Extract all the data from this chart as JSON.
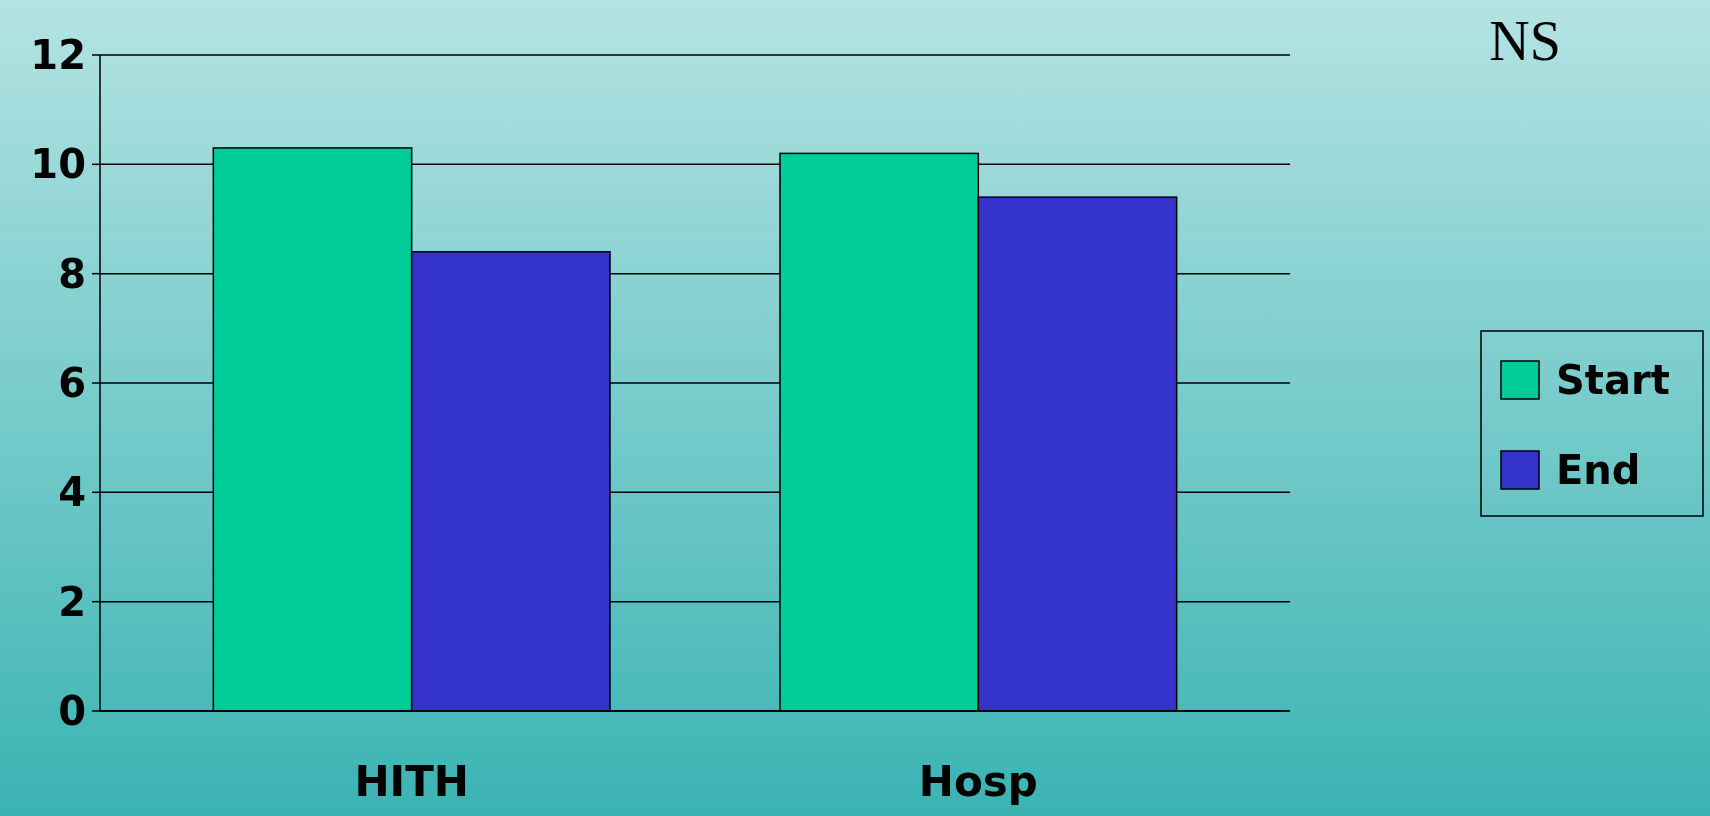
{
  "chart_data": {
    "type": "bar",
    "categories": [
      "HITH",
      "Hosp"
    ],
    "series": [
      {
        "name": "Start",
        "color": "#00cc99",
        "values": [
          10.3,
          10.2
        ]
      },
      {
        "name": "End",
        "color": "#3333cc",
        "values": [
          8.4,
          9.4
        ]
      }
    ],
    "ylim": [
      0,
      12
    ],
    "yticks": [
      0,
      2,
      4,
      6,
      8,
      10,
      12
    ],
    "grid": "y",
    "legend": "right",
    "annotations": [
      "NS"
    ]
  }
}
